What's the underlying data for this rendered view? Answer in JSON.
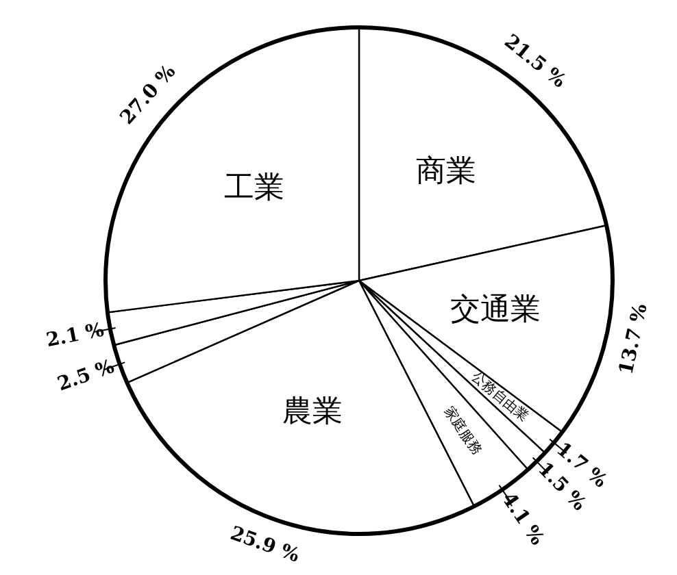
{
  "chart_data": {
    "type": "pie",
    "categories": [
      "商業",
      "交通業",
      "公務自由業",
      null,
      "家庭服務",
      "農業",
      null,
      null,
      "工業"
    ],
    "values": [
      21.5,
      13.7,
      1.7,
      1.5,
      4.1,
      25.9,
      2.5,
      2.1,
      27.0
    ],
    "value_labels": [
      "21.5 %",
      "13.7 %",
      "1.7 %",
      "1.5 %",
      "4.1 %",
      "25.9 %",
      "2.5 %",
      "2.1 %",
      "27.0 %"
    ],
    "colors": [
      "#ffffff",
      "#ffffff",
      "#ffffff",
      "#ffffff",
      "#ffffff",
      "#ffffff",
      "#ffffff",
      "#ffffff",
      "#ffffff"
    ]
  }
}
